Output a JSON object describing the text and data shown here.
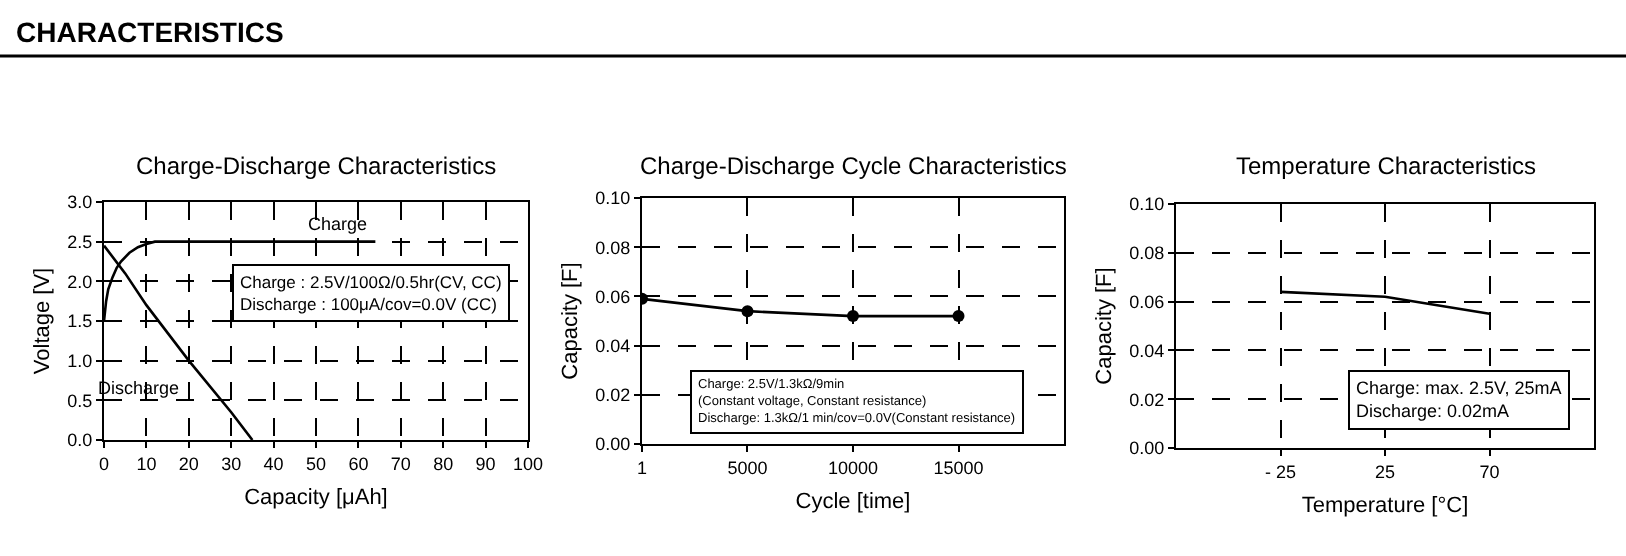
{
  "chart_data": [
    {
      "type": "line",
      "title": "Charge-Discharge Characteristics",
      "xlabel": "Capacity [μAh]",
      "ylabel": "Voltage [V]",
      "series": [
        {
          "name": "Charge",
          "color": "#000000",
          "x": [
            0,
            0.5,
            1,
            2,
            3,
            4,
            6,
            8,
            10,
            12,
            15,
            20,
            30,
            40,
            50,
            64
          ],
          "values": [
            1.5,
            1.75,
            1.9,
            2.05,
            2.17,
            2.25,
            2.36,
            2.43,
            2.47,
            2.5,
            2.5,
            2.5,
            2.5,
            2.5,
            2.5,
            2.5
          ]
        },
        {
          "name": "Discharge",
          "color": "#000000",
          "x": [
            0,
            5,
            10,
            20,
            30,
            35
          ],
          "values": [
            2.45,
            2.1,
            1.7,
            1.0,
            0.35,
            0
          ]
        }
      ],
      "xlim": [
        0,
        100
      ],
      "xticks": [
        0,
        10,
        20,
        30,
        40,
        50,
        60,
        70,
        80,
        90,
        100
      ],
      "ylim": [
        0,
        3
      ],
      "yticks": [
        {
          "value": 0,
          "label": "0.0"
        },
        {
          "value": 0.5,
          "label": "0.5"
        },
        {
          "value": 1,
          "label": "1.0"
        },
        {
          "value": 1.5,
          "label": "1.5"
        },
        {
          "value": 2,
          "label": "2.0"
        },
        {
          "value": 2.5,
          "label": "2.5"
        },
        {
          "value": 3,
          "label": "3.0"
        }
      ],
      "grid": true,
      "legend": false,
      "marker": "none",
      "line_style": "solid",
      "annotations": [
        "CHARACTERISTICS",
        "Charge : 2.5V/100Ω/0.5hr(CV, CC)\nDischarge : 100μA/cov=0.0V (CC)"
      ]
    },
    {
      "type": "line",
      "title": "Charge-Discharge Cycle Characteristics",
      "xlabel": "Cycle [time]",
      "ylabel": "Capacity [F]",
      "series": [
        {
          "color": "#000000",
          "x": [
            1,
            5000,
            10000,
            15000
          ],
          "values": [
            0.059,
            0.054,
            0.052,
            0.052
          ]
        }
      ],
      "xlim": [
        1,
        20000
      ],
      "xticks": [
        1,
        5000,
        10000,
        15000
      ],
      "ylim": [
        0,
        0.1
      ],
      "yticks": [
        {
          "value": 0,
          "label": "0.00"
        },
        {
          "value": 0.02,
          "label": "0.02"
        },
        {
          "value": 0.04,
          "label": "0.04"
        },
        {
          "value": 0.06,
          "label": "0.06"
        },
        {
          "value": 0.08,
          "label": "0.08"
        },
        {
          "value": 0.1,
          "label": "0.10"
        }
      ],
      "grid": true,
      "legend": false,
      "marker": "circle",
      "line_style": "solid",
      "annotations": [
        "Charge: 2.5V/1.3kΩ/9min\n(Constant voltage, Constant resistance)\nDischarge: 1.3kΩ/1 min/cov=0.0V(Constant resistance)"
      ]
    },
    {
      "type": "line",
      "title": "Temperature Characteristics",
      "xlabel": "Temperature [°C]",
      "ylabel": "Capacity [F]",
      "categories": [
        "- 25",
        "25",
        "70"
      ],
      "series": [
        {
          "color": "#000000",
          "values": [
            0.064,
            0.062,
            0.055
          ]
        }
      ],
      "ylim": [
        0,
        0.1
      ],
      "yticks": [
        {
          "value": 0,
          "label": "0.00"
        },
        {
          "value": 0.02,
          "label": "0.02"
        },
        {
          "value": 0.04,
          "label": "0.04"
        },
        {
          "value": 0.06,
          "label": "0.06"
        },
        {
          "value": 0.08,
          "label": "0.08"
        },
        {
          "value": 0.1,
          "label": "0.10"
        }
      ],
      "grid": true,
      "legend": false,
      "marker": "none",
      "line_style": "solid",
      "annotations": [
        "Charge: max. 2.5V, 25mA\nDischarge: 0.02mA"
      ]
    }
  ]
}
